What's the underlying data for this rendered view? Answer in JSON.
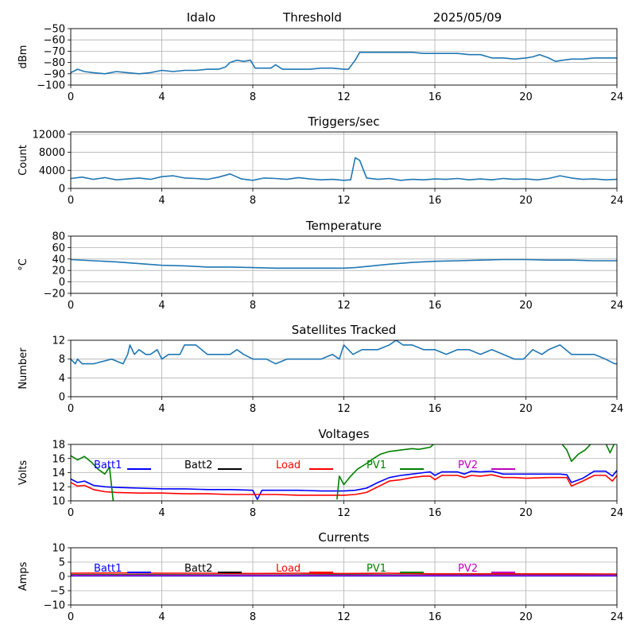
{
  "header": {
    "station": "Idalo",
    "mode": "Threshold",
    "date": "2025/05/09"
  },
  "colors": {
    "default": "#1f77b4",
    "grid": "#b0b0b0",
    "batt1": "#0000ff",
    "batt2": "#000000",
    "load": "#ff0000",
    "pv1": "#008000",
    "pv2": "#bf00bf"
  },
  "chart_data": [
    {
      "type": "line",
      "id": "signal",
      "title": "",
      "xlabel": "",
      "ylabel": "dBm",
      "xlim": [
        0,
        24
      ],
      "ylim": [
        -100,
        -50
      ],
      "xticks": [
        0,
        4,
        8,
        12,
        16,
        20,
        24
      ],
      "yticks": [
        -100,
        -90,
        -80,
        -70,
        -60,
        -50
      ],
      "grid": true,
      "series": [
        {
          "color": "default",
          "x": [
            0,
            0.3,
            0.6,
            1,
            1.5,
            2,
            2.5,
            3,
            3.5,
            4,
            4.5,
            5,
            5.5,
            6,
            6.5,
            6.8,
            7,
            7.3,
            7.6,
            7.9,
            8.1,
            8.5,
            8.8,
            9,
            9.3,
            9.6,
            10,
            10.5,
            11,
            11.5,
            12,
            12.2,
            12.5,
            12.7,
            13,
            13.5,
            14,
            14.5,
            15,
            15.5,
            16,
            16.5,
            17,
            17.5,
            18,
            18.5,
            19,
            19.5,
            20,
            20.3,
            20.6,
            21,
            21.3,
            21.6,
            22,
            22.5,
            23,
            23.5,
            24
          ],
          "y": [
            -89,
            -86,
            -88,
            -89,
            -90,
            -88,
            -89,
            -90,
            -89,
            -87,
            -88,
            -87,
            -87,
            -86,
            -86,
            -84,
            -80,
            -78,
            -79,
            -78,
            -85,
            -85,
            -85,
            -82,
            -86,
            -86,
            -86,
            -86,
            -85,
            -85,
            -86,
            -86,
            -78,
            -71,
            -71,
            -71,
            -71,
            -71,
            -71,
            -72,
            -72,
            -72,
            -72,
            -73,
            -73,
            -76,
            -76,
            -77,
            -76,
            -75,
            -73,
            -76,
            -79,
            -78,
            -77,
            -77,
            -76,
            -76,
            -76
          ]
        }
      ]
    },
    {
      "type": "line",
      "id": "triggers",
      "title": "Triggers/sec",
      "xlabel": "",
      "ylabel": "Count",
      "xlim": [
        0,
        24
      ],
      "ylim": [
        0,
        12500
      ],
      "xticks": [
        0,
        4,
        8,
        12,
        16,
        20,
        24
      ],
      "yticks": [
        0,
        4000,
        8000,
        12000
      ],
      "grid": true,
      "series": [
        {
          "color": "default",
          "x": [
            0,
            0.5,
            1,
            1.5,
            2,
            2.5,
            3,
            3.5,
            4,
            4.5,
            5,
            5.5,
            6,
            6.5,
            7,
            7.5,
            8,
            8.5,
            9,
            9.5,
            10,
            10.5,
            11,
            11.5,
            12,
            12.3,
            12.5,
            12.7,
            13,
            13.5,
            14,
            14.5,
            15,
            15.5,
            16,
            16.5,
            17,
            17.5,
            18,
            18.5,
            19,
            19.5,
            20,
            20.5,
            21,
            21.5,
            22,
            22.5,
            23,
            23.5,
            24
          ],
          "y": [
            2200,
            2500,
            2000,
            2400,
            1900,
            2100,
            2300,
            2000,
            2600,
            2800,
            2300,
            2200,
            2000,
            2500,
            3200,
            2100,
            1800,
            2300,
            2200,
            2000,
            2400,
            2100,
            1900,
            2000,
            1800,
            1900,
            6800,
            6200,
            2300,
            2000,
            2200,
            1800,
            2000,
            1900,
            2100,
            2000,
            2200,
            1900,
            2100,
            1900,
            2200,
            2000,
            2100,
            1900,
            2200,
            2800,
            2300,
            2000,
            2100,
            1900,
            2000
          ]
        }
      ]
    },
    {
      "type": "line",
      "id": "temperature",
      "title": "Temperature",
      "xlabel": "",
      "ylabel": "°C",
      "xlim": [
        0,
        24
      ],
      "ylim": [
        -20,
        80
      ],
      "xticks": [
        0,
        4,
        8,
        12,
        16,
        20,
        24
      ],
      "yticks": [
        -20,
        0,
        20,
        40,
        60,
        80
      ],
      "grid": true,
      "series": [
        {
          "color": "default",
          "x": [
            0,
            1,
            2,
            3,
            4,
            5,
            6,
            7,
            8,
            9,
            10,
            11,
            12,
            12.5,
            13,
            14,
            15,
            16,
            17,
            18,
            19,
            20,
            21,
            22,
            23,
            24
          ],
          "y": [
            39,
            37,
            35,
            32,
            29,
            28,
            26,
            26,
            25,
            24,
            24,
            24,
            24,
            25,
            27,
            31,
            34,
            36,
            37,
            38,
            39,
            39,
            38,
            38,
            37,
            37
          ]
        }
      ]
    },
    {
      "type": "line",
      "id": "satellites",
      "title": "Satellites Tracked",
      "xlabel": "",
      "ylabel": "Number",
      "xlim": [
        0,
        24
      ],
      "ylim": [
        0,
        12
      ],
      "xticks": [
        0,
        4,
        8,
        12,
        16,
        20,
        24
      ],
      "yticks": [
        0,
        4,
        8,
        12
      ],
      "grid": true,
      "series": [
        {
          "color": "default",
          "x": [
            0,
            0.2,
            0.3,
            0.5,
            1.0,
            1.8,
            2.3,
            2.5,
            2.6,
            2.8,
            3.0,
            3.3,
            3.5,
            3.8,
            4.0,
            4.3,
            4.8,
            5.0,
            5.5,
            6.0,
            6.5,
            7.0,
            7.3,
            7.6,
            8.0,
            8.6,
            9.0,
            9.5,
            10.0,
            10.5,
            11.0,
            11.5,
            11.8,
            12.0,
            12.4,
            12.8,
            13.5,
            14.0,
            14.3,
            14.6,
            15.0,
            15.5,
            16.0,
            16.5,
            17.0,
            17.5,
            18.0,
            18.5,
            19.0,
            19.5,
            19.9,
            20.3,
            20.7,
            21.0,
            21.5,
            22.0,
            22.5,
            23.0,
            23.5,
            23.9,
            24
          ],
          "y": [
            8,
            7,
            8,
            7,
            7,
            8,
            7,
            9,
            11,
            9,
            10,
            9,
            9,
            10,
            8,
            9,
            9,
            11,
            11,
            9,
            9,
            9,
            10,
            9,
            8,
            8,
            7,
            8,
            8,
            8,
            8,
            9,
            8,
            11,
            9,
            10,
            10,
            11,
            12,
            11,
            11,
            10,
            10,
            9,
            10,
            10,
            9,
            10,
            9,
            8,
            8,
            10,
            9,
            10,
            11,
            9,
            9,
            9,
            8,
            7,
            7
          ]
        }
      ]
    },
    {
      "type": "line",
      "id": "voltages",
      "title": "Voltages",
      "xlabel": "",
      "ylabel": "Volts",
      "xlim": [
        0,
        24
      ],
      "ylim": [
        10,
        18
      ],
      "xticks": [
        0,
        4,
        8,
        12,
        16,
        20,
        24
      ],
      "yticks": [
        10,
        12,
        14,
        16,
        18
      ],
      "grid": true,
      "legend_placement": "inside, top row",
      "series": [
        {
          "name": "Batt1",
          "color": "batt1",
          "x": [
            0,
            0.3,
            0.6,
            1,
            1.5,
            2,
            3,
            4,
            5,
            6,
            7,
            8,
            8.2,
            8.4,
            8.6,
            9,
            10,
            11,
            12,
            12.5,
            13,
            13.5,
            14,
            14.5,
            15,
            15.5,
            15.8,
            16,
            16.3,
            17,
            17.3,
            17.6,
            18,
            18.5,
            19,
            19.5,
            20,
            21,
            21.5,
            21.8,
            22,
            22.5,
            23,
            23.5,
            23.8,
            24
          ],
          "y": [
            13.1,
            12.6,
            12.8,
            12.2,
            12.0,
            11.9,
            11.8,
            11.7,
            11.7,
            11.6,
            11.6,
            11.5,
            10.2,
            11.5,
            11.5,
            11.5,
            11.5,
            11.4,
            11.4,
            11.5,
            11.8,
            12.6,
            13.3,
            13.6,
            13.8,
            14.0,
            14.1,
            13.6,
            14.1,
            14.1,
            13.8,
            14.2,
            14.1,
            14.2,
            13.8,
            13.8,
            13.8,
            13.8,
            13.8,
            13.7,
            12.6,
            13.2,
            14.2,
            14.2,
            13.5,
            14.3
          ]
        },
        {
          "name": "Batt2",
          "color": "batt2",
          "x": [],
          "y": []
        },
        {
          "name": "Load",
          "color": "load",
          "x": [
            0,
            0.3,
            0.6,
            1,
            1.5,
            2,
            3,
            4,
            5,
            6,
            7,
            8,
            9,
            10,
            11,
            12,
            12.5,
            13,
            13.5,
            14,
            14.5,
            15,
            15.5,
            15.8,
            16,
            16.3,
            17,
            17.3,
            17.6,
            18,
            18.5,
            19,
            19.5,
            20,
            21,
            21.5,
            21.8,
            22,
            22.5,
            23,
            23.5,
            23.8,
            24
          ],
          "y": [
            12.6,
            12.1,
            12.2,
            11.6,
            11.3,
            11.2,
            11.1,
            11.1,
            11.0,
            11.0,
            10.9,
            10.9,
            10.9,
            10.8,
            10.8,
            10.8,
            10.9,
            11.2,
            12.0,
            12.8,
            13.0,
            13.3,
            13.5,
            13.5,
            13.0,
            13.6,
            13.6,
            13.3,
            13.6,
            13.5,
            13.7,
            13.3,
            13.3,
            13.2,
            13.3,
            13.3,
            13.3,
            12.1,
            12.8,
            13.6,
            13.6,
            12.8,
            13.6
          ]
        },
        {
          "name": "PV1",
          "color": "pv1",
          "x": [
            0,
            0.3,
            0.6,
            0.9,
            1.2,
            1.5,
            1.7,
            1.9,
            null,
            11.7,
            11.8,
            12.0,
            12.3,
            12.6,
            13.0,
            13.3,
            13.6,
            14.0,
            14.5,
            15.0,
            15.3,
            15.8,
            16.0,
            null,
            21.6,
            21.8,
            22.0,
            22.3,
            22.6,
            22.9,
            null,
            23.5,
            23.7,
            23.9
          ],
          "y": [
            16.4,
            15.8,
            16.3,
            15.5,
            14.5,
            13.8,
            14.8,
            9.0,
            null,
            10.2,
            13.5,
            12.3,
            13.5,
            14.5,
            15.3,
            16.0,
            16.6,
            17.0,
            17.2,
            17.4,
            17.3,
            17.6,
            18.2,
            null,
            18.0,
            17.2,
            15.6,
            16.6,
            17.2,
            18.2,
            null,
            18.2,
            16.8,
            18.2
          ]
        },
        {
          "name": "PV2",
          "color": "pv2",
          "x": [],
          "y": []
        }
      ]
    },
    {
      "type": "line",
      "id": "currents",
      "title": "Currents",
      "xlabel": "",
      "ylabel": "Amps",
      "xlim": [
        0,
        24
      ],
      "ylim": [
        -10,
        10
      ],
      "xticks": [
        0,
        4,
        8,
        12,
        16,
        20,
        24
      ],
      "yticks": [
        -10,
        -5,
        0,
        5,
        10
      ],
      "grid": true,
      "legend_placement": "inside, top row",
      "series": [
        {
          "name": "Batt1",
          "color": "batt1",
          "x": [
            0,
            4,
            8,
            12,
            16,
            20,
            24
          ],
          "y": [
            0.2,
            0.2,
            0.2,
            0.2,
            0.2,
            0.2,
            0.2
          ]
        },
        {
          "name": "Batt2",
          "color": "batt2",
          "x": [],
          "y": []
        },
        {
          "name": "Load",
          "color": "load",
          "x": [
            0,
            2,
            4,
            6,
            8,
            10,
            12,
            14,
            16,
            18,
            20,
            22,
            24
          ],
          "y": [
            1.1,
            1.2,
            1.1,
            1.1,
            1.0,
            1.1,
            1.0,
            1.1,
            0.9,
            0.9,
            0.9,
            0.9,
            0.8
          ]
        },
        {
          "name": "PV1",
          "color": "pv1",
          "x": [
            0,
            4,
            8,
            12,
            16,
            20,
            24
          ],
          "y": [
            0.6,
            0.6,
            0.5,
            0.6,
            0.5,
            0.5,
            0.5
          ]
        },
        {
          "name": "PV2",
          "color": "pv2",
          "x": [
            0,
            4,
            8,
            12,
            16,
            20,
            24
          ],
          "y": [
            0.4,
            0.4,
            0.4,
            0.4,
            0.4,
            0.4,
            0.4
          ]
        }
      ]
    }
  ]
}
